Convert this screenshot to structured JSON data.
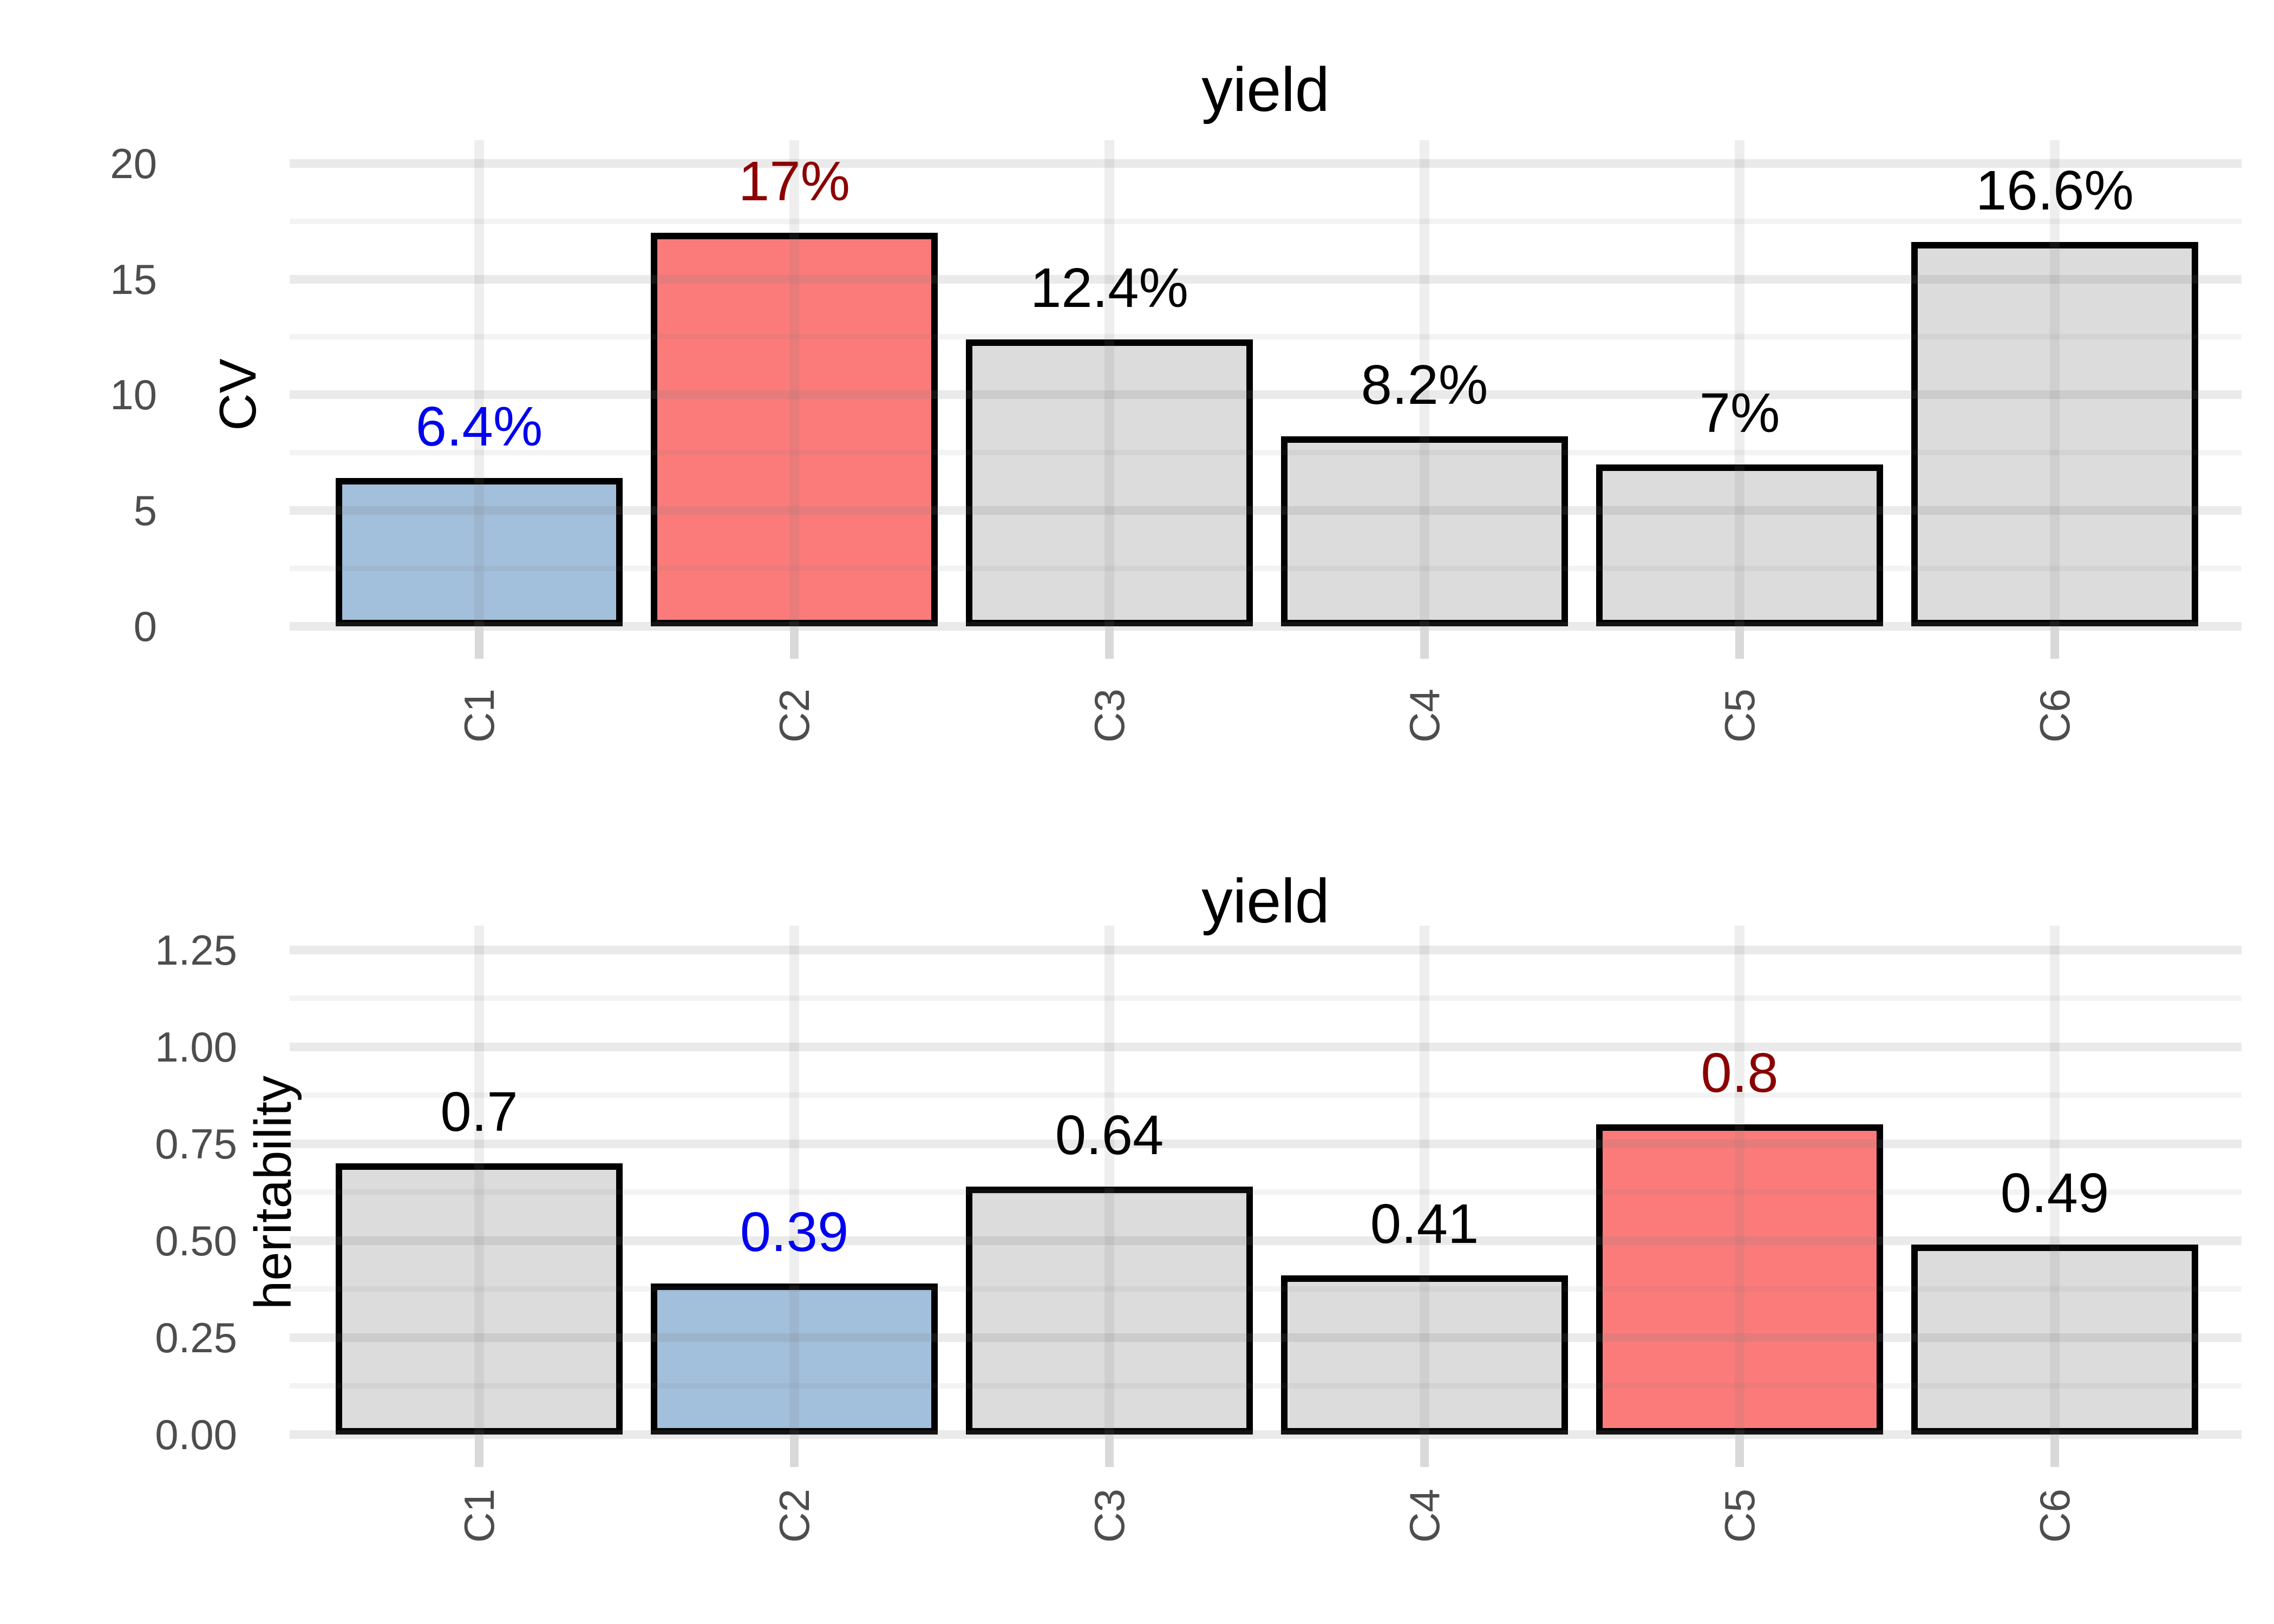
{
  "figure": {
    "background": "#ffffff"
  },
  "style": {
    "bar_border_color": "#000000",
    "axis_text_color": "#4d4d4d",
    "title_color": "#000000",
    "grid_major_color": "#e7e7e7",
    "grid_minor_color": "#f1f1f1",
    "tick_mark_color": "#d9d9d9",
    "highlight_low_color": "#a2bfdb",
    "highlight_high_color": "#fb7b7b",
    "default_bar_color": "#dcdcdc",
    "low_label_color": "#0000ee",
    "high_label_color": "#8b0000",
    "default_label_color": "#000000"
  },
  "chart_data": [
    {
      "type": "bar",
      "title": "yield",
      "xlabel": "",
      "ylabel": "CV",
      "categories": [
        "C1",
        "C2",
        "C3",
        "C4",
        "C5",
        "C6"
      ],
      "values": [
        6.4,
        17,
        12.4,
        8.2,
        7,
        16.6
      ],
      "bar_labels": [
        "6.4%",
        "17%",
        "12.4%",
        "8.2%",
        "7%",
        "16.6%"
      ],
      "bar_colors": [
        "#a2bfdb",
        "#fb7b7b",
        "#dcdcdc",
        "#dcdcdc",
        "#dcdcdc",
        "#dcdcdc"
      ],
      "label_colors": [
        "#0000ee",
        "#8b0000",
        "#000000",
        "#000000",
        "#000000",
        "#000000"
      ],
      "ylim": [
        0,
        20
      ],
      "yticks": [
        0,
        5,
        10,
        15,
        20
      ],
      "ytick_labels": [
        "0",
        "5",
        "10",
        "15",
        "20"
      ],
      "minor_step": 2.5,
      "grid": "major+minor horizontal, major vertical",
      "legend_position": "none"
    },
    {
      "type": "bar",
      "title": "yield",
      "xlabel": "",
      "ylabel": "heritability",
      "categories": [
        "C1",
        "C2",
        "C3",
        "C4",
        "C5",
        "C6"
      ],
      "values": [
        0.7,
        0.39,
        0.64,
        0.41,
        0.8,
        0.49
      ],
      "bar_labels": [
        "0.7",
        "0.39",
        "0.64",
        "0.41",
        "0.8",
        "0.49"
      ],
      "bar_colors": [
        "#dcdcdc",
        "#a2bfdb",
        "#dcdcdc",
        "#dcdcdc",
        "#fb7b7b",
        "#dcdcdc"
      ],
      "label_colors": [
        "#000000",
        "#0000ee",
        "#000000",
        "#000000",
        "#8b0000",
        "#000000"
      ],
      "ylim": [
        0,
        1.25
      ],
      "yticks": [
        0,
        0.25,
        0.5,
        0.75,
        1.0,
        1.25
      ],
      "ytick_labels": [
        "0.00",
        "0.25",
        "0.50",
        "0.75",
        "1.00",
        "1.25"
      ],
      "minor_step": 0.125,
      "grid": "major+minor horizontal, major vertical",
      "legend_position": "none"
    }
  ]
}
